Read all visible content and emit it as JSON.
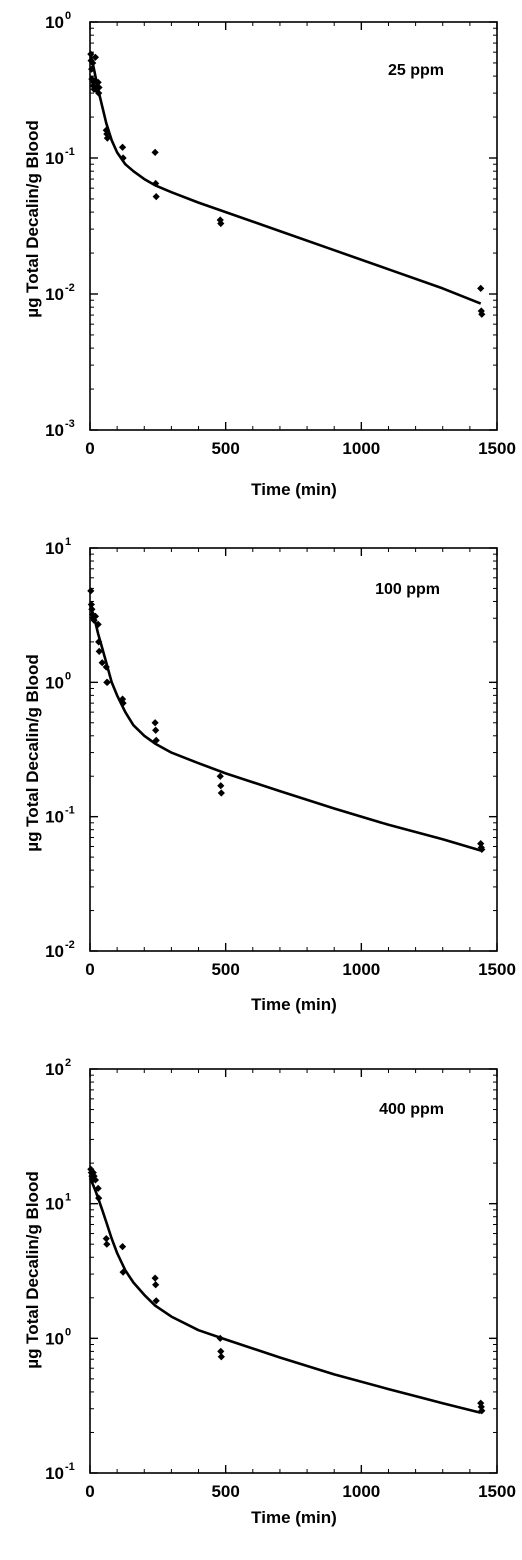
{
  "chart_data": [
    {
      "type": "scatter",
      "title": "",
      "annotation": "25 ppm",
      "xlabel": "Time (min)",
      "ylabel": "µg Total Decalin/g Blood",
      "xlim": [
        0,
        1500
      ],
      "ylim": [
        0.001,
        1
      ],
      "yscale": "log",
      "grid": false,
      "x_ticks": [
        "0",
        "500",
        "1000",
        "1500"
      ],
      "y_ticks": [
        {
          "base": "10",
          "exp": "-3"
        },
        {
          "base": "10",
          "exp": "-2"
        },
        {
          "base": "10",
          "exp": "-1"
        },
        {
          "base": "10",
          "exp": "0"
        }
      ],
      "series": [
        {
          "type": "scatter",
          "x": [
            3,
            4,
            6,
            7,
            10,
            12,
            14,
            15,
            20,
            22,
            30,
            32,
            33,
            60,
            62,
            64,
            120,
            122,
            240,
            242,
            244,
            480,
            482,
            1440,
            1442,
            1444
          ],
          "values": [
            0.58,
            0.52,
            0.45,
            0.38,
            0.5,
            0.34,
            0.36,
            0.32,
            0.55,
            0.32,
            0.36,
            0.3,
            0.33,
            0.16,
            0.15,
            0.14,
            0.12,
            0.1,
            0.11,
            0.065,
            0.052,
            0.035,
            0.033,
            0.011,
            0.0075,
            0.0071
          ]
        },
        {
          "type": "line",
          "x": [
            0,
            10,
            20,
            30,
            45,
            60,
            80,
            100,
            130,
            160,
            200,
            240,
            300,
            400,
            500,
            700,
            900,
            1100,
            1300,
            1440
          ],
          "values": [
            0.6,
            0.5,
            0.4,
            0.32,
            0.24,
            0.18,
            0.135,
            0.11,
            0.09,
            0.08,
            0.07,
            0.063,
            0.056,
            0.047,
            0.04,
            0.029,
            0.021,
            0.0152,
            0.011,
            0.0085
          ]
        }
      ]
    },
    {
      "type": "scatter",
      "title": "",
      "annotation": "100 ppm",
      "xlabel": "Time (min)",
      "ylabel": "µg Total Decalin/g Blood",
      "xlim": [
        0,
        1500
      ],
      "ylim": [
        0.01,
        10
      ],
      "yscale": "log",
      "grid": false,
      "x_ticks": [
        "0",
        "500",
        "1000",
        "1500"
      ],
      "y_ticks": [
        {
          "base": "10",
          "exp": "-2"
        },
        {
          "base": "10",
          "exp": "-1"
        },
        {
          "base": "10",
          "exp": "0"
        },
        {
          "base": "10",
          "exp": "1"
        }
      ],
      "series": [
        {
          "type": "scatter",
          "x": [
            3,
            5,
            7,
            9,
            12,
            15,
            20,
            30,
            32,
            34,
            45,
            60,
            62,
            64,
            120,
            122,
            240,
            242,
            244,
            480,
            482,
            484,
            1440,
            1442,
            1444
          ],
          "values": [
            4.8,
            3.8,
            3.5,
            3.2,
            3.0,
            2.9,
            3.1,
            2.7,
            2.0,
            1.7,
            1.4,
            1.3,
            1.0,
            1.0,
            0.75,
            0.7,
            0.5,
            0.44,
            0.37,
            0.2,
            0.17,
            0.15,
            0.063,
            0.059,
            0.057
          ]
        },
        {
          "type": "line",
          "x": [
            0,
            10,
            20,
            30,
            45,
            60,
            80,
            100,
            130,
            160,
            200,
            240,
            300,
            400,
            500,
            700,
            900,
            1100,
            1300,
            1440
          ],
          "values": [
            3.8,
            3.3,
            2.8,
            2.3,
            1.8,
            1.4,
            1.0,
            0.8,
            0.6,
            0.48,
            0.4,
            0.35,
            0.3,
            0.25,
            0.21,
            0.155,
            0.115,
            0.087,
            0.068,
            0.056
          ]
        }
      ]
    },
    {
      "type": "scatter",
      "title": "",
      "annotation": "400 ppm",
      "xlabel": "Time (min)",
      "ylabel": "µg Total Decalin/g Blood",
      "xlim": [
        0,
        1500
      ],
      "ylim": [
        0.1,
        100
      ],
      "yscale": "log",
      "grid": false,
      "x_ticks": [
        "0",
        "500",
        "1000",
        "1500"
      ],
      "y_ticks": [
        {
          "base": "10",
          "exp": "-1"
        },
        {
          "base": "10",
          "exp": "0"
        },
        {
          "base": "10",
          "exp": "1"
        },
        {
          "base": "10",
          "exp": "2"
        }
      ],
      "series": [
        {
          "type": "scatter",
          "x": [
            3,
            5,
            7,
            10,
            12,
            15,
            20,
            30,
            32,
            60,
            62,
            120,
            122,
            240,
            242,
            244,
            480,
            482,
            484,
            1440,
            1442,
            1444
          ],
          "values": [
            18,
            17,
            16,
            15,
            17,
            16,
            15,
            13,
            11,
            5.5,
            5.0,
            4.8,
            3.1,
            2.8,
            2.5,
            1.9,
            1.0,
            0.8,
            0.73,
            0.33,
            0.31,
            0.29
          ]
        },
        {
          "type": "line",
          "x": [
            0,
            10,
            20,
            30,
            45,
            60,
            80,
            100,
            130,
            160,
            200,
            240,
            300,
            400,
            500,
            700,
            900,
            1100,
            1300,
            1440
          ],
          "values": [
            15.5,
            14,
            12.5,
            11,
            9,
            7.3,
            5.5,
            4.3,
            3.2,
            2.6,
            2.1,
            1.75,
            1.45,
            1.15,
            0.98,
            0.72,
            0.54,
            0.42,
            0.33,
            0.28
          ]
        }
      ]
    }
  ]
}
